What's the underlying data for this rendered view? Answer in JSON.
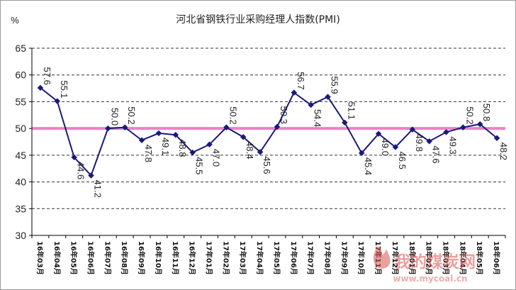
{
  "chart_data": {
    "type": "line",
    "title": "河北省钢铁行业采购经理人指数(PMI)",
    "yunit": "%",
    "ylim": [
      30,
      65
    ],
    "yticks": [
      30,
      35,
      40,
      45,
      50,
      55,
      60,
      65
    ],
    "grid": "horizontal dashed",
    "reference_line": 50,
    "categories": [
      "16年03月",
      "16年04月",
      "16年05月",
      "16年06月",
      "16年07月",
      "16年08月",
      "16年09月",
      "16年10月",
      "16年11月",
      "16年12月",
      "17年01月",
      "17年02月",
      "17年03月",
      "17年04月",
      "17年05月",
      "17年06月",
      "17年07月",
      "17年08月",
      "17年09月",
      "17年10月",
      "17年11月",
      "17年12月",
      "18年01月",
      "18年02月",
      "18年03月",
      "18年04月",
      "18年05月",
      "18年06月"
    ],
    "series": [
      {
        "values": [
          57.6,
          55.1,
          44.6,
          41.2,
          50.0,
          50.2,
          47.8,
          49.1,
          48.8,
          45.5,
          47.0,
          50.2,
          48.4,
          45.6,
          50.3,
          56.7,
          54.4,
          55.9,
          51.1,
          45.4,
          49.0,
          46.5,
          49.8,
          47.6,
          49.3,
          50.2,
          50.8,
          48.2
        ],
        "labels": [
          "57.6",
          "55.1",
          "44.6",
          "41.2",
          "50.0",
          "50.2",
          "47.8",
          "49.1",
          "48.8",
          "45.5",
          "47.0",
          "50.2",
          "48.4",
          "45.6",
          "50.3",
          "56.7",
          "54.4",
          "55.9",
          "51.1",
          "45.4",
          "49.0",
          "46.5",
          "49.8",
          "47.6",
          "49.3",
          "50.2",
          "50.8",
          "48.2"
        ]
      }
    ]
  },
  "colors": {
    "series_line": "#1a1a7a",
    "reference_line": "#f080c8",
    "grid": "#333333",
    "watermark": "#d9534f"
  },
  "watermark": {
    "logo_text": "我的煤炭网",
    "url_text": "www.mycoal.cn",
    "icon": "flame-icon"
  }
}
